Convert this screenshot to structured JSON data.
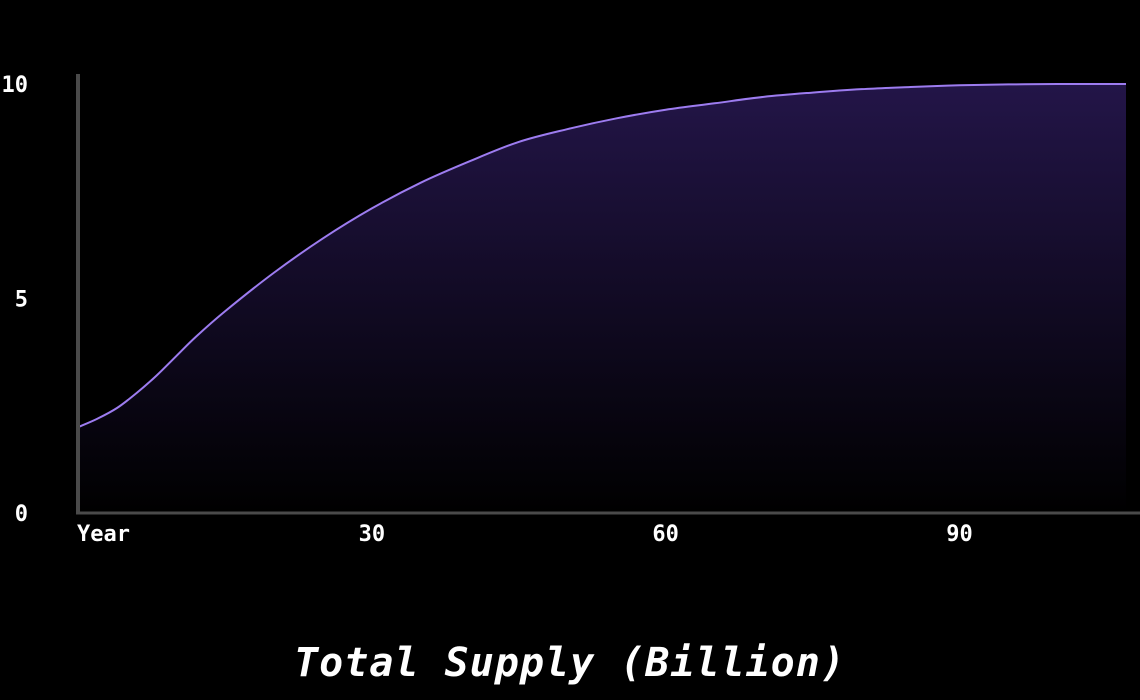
{
  "chart_data": {
    "type": "area",
    "title": "Total Supply (Billion)",
    "x_tick_labels": [
      "Year",
      "30",
      "60",
      "90"
    ],
    "x_tick_values": [
      0,
      30,
      60,
      90
    ],
    "y_tick_labels": [
      "0",
      "5",
      "10"
    ],
    "y_tick_values": [
      0,
      5,
      10
    ],
    "xlim": [
      0,
      107
    ],
    "ylim": [
      0,
      10
    ],
    "grid": false,
    "series": [
      {
        "x": [
          0,
          2,
          4,
          6,
          8,
          10,
          12,
          15,
          20,
          25,
          30,
          35,
          40,
          45,
          50,
          55,
          60,
          65,
          70,
          75,
          80,
          85,
          90,
          95,
          100,
          107
        ],
        "values": [
          2.0,
          2.2,
          2.45,
          2.8,
          3.2,
          3.65,
          4.1,
          4.7,
          5.6,
          6.4,
          7.1,
          7.7,
          8.2,
          8.65,
          8.95,
          9.2,
          9.4,
          9.55,
          9.7,
          9.8,
          9.88,
          9.93,
          9.97,
          9.99,
          10.0,
          10.0
        ]
      }
    ],
    "colors": {
      "line": "#9d7cf0",
      "fill_top": "#231548",
      "fill_bottom": "#000000",
      "axis": "#4a4a4a"
    }
  }
}
